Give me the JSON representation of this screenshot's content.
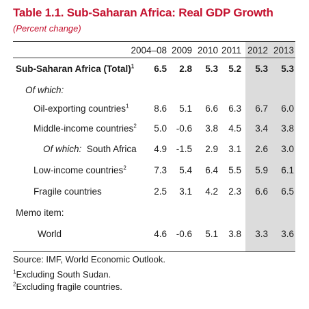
{
  "title": "Table 1.1. Sub-Saharan Africa: Real GDP Growth",
  "subtitle": "(Percent change)",
  "columns": [
    "2004–08",
    "2009",
    "2010",
    "2011",
    "2012",
    "2013"
  ],
  "rows": [
    {
      "label": "Sub-Saharan Africa (Total)",
      "sup": "1",
      "values": [
        "6.5",
        "2.8",
        "5.3",
        "5.2",
        "5.3",
        "5.3"
      ],
      "bold": true
    },
    {
      "label": "Of which:",
      "italic": true,
      "values": []
    },
    {
      "label": "Oil-exporting countries",
      "sup": "1",
      "values": [
        "8.6",
        "5.1",
        "6.6",
        "6.3",
        "6.7",
        "6.0"
      ]
    },
    {
      "label": "Middle-income countries",
      "sup": "2",
      "values": [
        "5.0",
        "-0.6",
        "3.8",
        "4.5",
        "3.4",
        "3.8"
      ]
    },
    {
      "label_prefix": "Of which:",
      "label": "South Africa",
      "values": [
        "4.9",
        "-1.5",
        "2.9",
        "3.1",
        "2.6",
        "3.0"
      ]
    },
    {
      "label": "Low-income countries",
      "sup": "2",
      "values": [
        "7.3",
        "5.4",
        "6.4",
        "5.5",
        "5.9",
        "6.1"
      ]
    },
    {
      "label": "Fragile countries",
      "values": [
        "2.5",
        "3.1",
        "4.2",
        "2.3",
        "6.6",
        "6.5"
      ]
    },
    {
      "label": "Memo item:",
      "values": []
    },
    {
      "label": "World",
      "values": [
        "4.6",
        "-0.6",
        "5.1",
        "3.8",
        "3.3",
        "3.6"
      ]
    }
  ],
  "source": "Source: IMF, World Economic Outlook.",
  "footnotes": [
    {
      "mark": "1",
      "text": "Excluding South Sudan."
    },
    {
      "mark": "2",
      "text": "Excluding fragile countries."
    }
  ]
}
